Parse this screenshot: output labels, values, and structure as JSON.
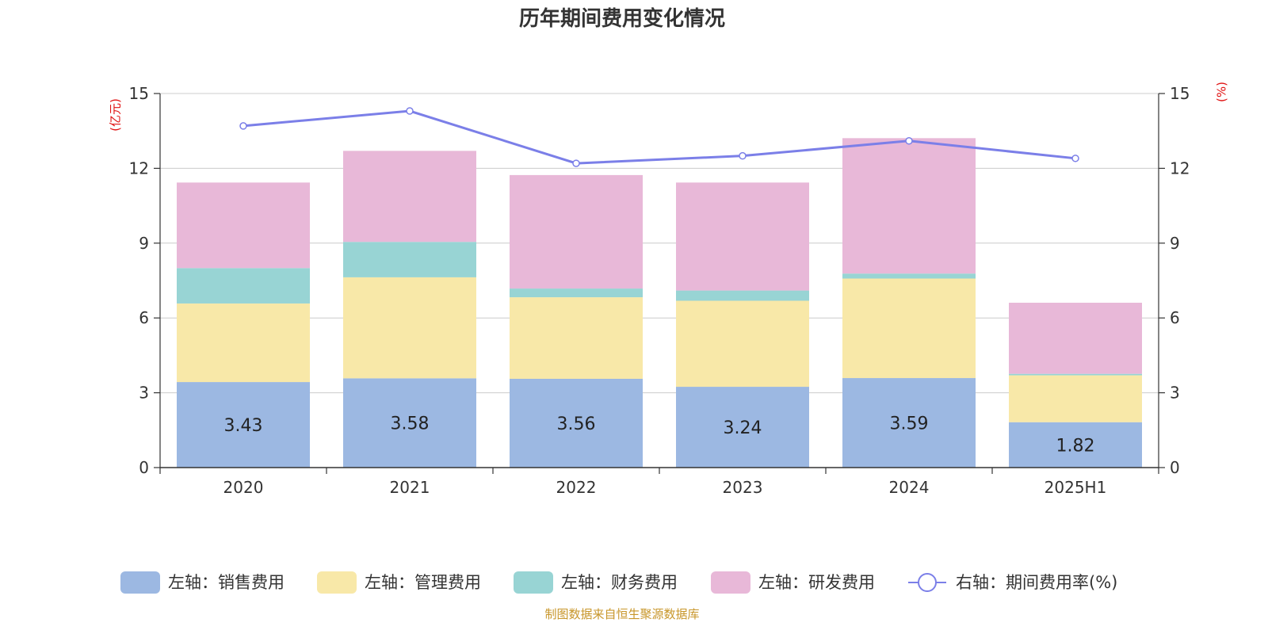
{
  "chart_data": {
    "type": "bar",
    "title": "历年期间费用变化情况",
    "categories": [
      "2020",
      "2021",
      "2022",
      "2023",
      "2024",
      "2025H1"
    ],
    "series": [
      {
        "name": "左轴：销售费用",
        "axis": "left",
        "values": [
          3.43,
          3.58,
          3.56,
          3.24,
          3.59,
          1.82
        ],
        "color": "#9cb8e2",
        "show_labels": true
      },
      {
        "name": "左轴：管理费用",
        "axis": "left",
        "values": [
          3.15,
          4.05,
          3.27,
          3.45,
          3.99,
          1.88
        ],
        "color": "#f8e8a8",
        "show_labels": false
      },
      {
        "name": "左轴：财务费用",
        "axis": "left",
        "values": [
          1.42,
          1.42,
          0.35,
          0.41,
          0.2,
          0.06
        ],
        "color": "#98d4d4",
        "show_labels": false
      },
      {
        "name": "左轴：研发费用",
        "axis": "left",
        "values": [
          3.43,
          3.65,
          4.55,
          4.33,
          5.43,
          2.85
        ],
        "color": "#e8b8d8",
        "show_labels": false
      },
      {
        "name": "右轴：期间费用率(%)",
        "axis": "right",
        "type": "line",
        "values": [
          13.7,
          14.3,
          12.2,
          12.5,
          13.1,
          12.4
        ],
        "color": "#7b7fe8"
      }
    ],
    "y_left": {
      "unit": "(亿元)",
      "range": [
        0,
        15
      ],
      "ticks": [
        "0",
        "3",
        "6",
        "9",
        "12",
        "15"
      ]
    },
    "y_right": {
      "unit": "(%)",
      "range": [
        0,
        15
      ],
      "ticks": [
        "0",
        "3",
        "6",
        "9",
        "12",
        "15"
      ]
    },
    "grid": true,
    "legend_position": "bottom"
  },
  "source_note": "制图数据来自恒生聚源数据库"
}
